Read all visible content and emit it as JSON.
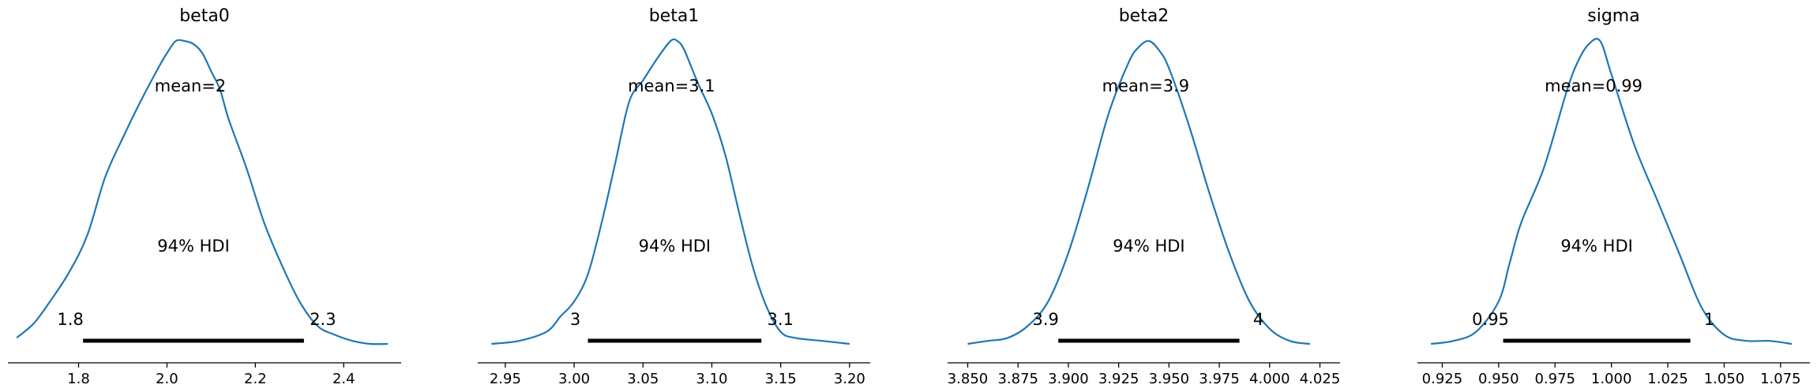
{
  "chart_data": [
    {
      "type": "line",
      "title": "beta0",
      "xlim": [
        1.64,
        2.53
      ],
      "xticks": [
        1.8,
        2.0,
        2.2,
        2.4
      ],
      "xtick_labels": [
        "1.8",
        "2.0",
        "2.2",
        "2.4"
      ],
      "density_x": [
        1.66,
        1.7,
        1.74,
        1.78,
        1.82,
        1.86,
        1.9,
        1.94,
        1.98,
        2.0,
        2.02,
        2.04,
        2.06,
        2.08,
        2.1,
        2.12,
        2.14,
        2.18,
        2.22,
        2.26,
        2.3,
        2.34,
        2.38,
        2.42,
        2.46,
        2.5
      ],
      "density_y": [
        0.02,
        0.07,
        0.15,
        0.24,
        0.36,
        0.55,
        0.68,
        0.8,
        0.91,
        0.96,
        1.0,
        1.0,
        0.99,
        0.96,
        0.9,
        0.84,
        0.74,
        0.58,
        0.4,
        0.26,
        0.14,
        0.06,
        0.03,
        0.01,
        0.0,
        0.0
      ],
      "mean_label": "mean=2",
      "hdi_label": "94% HDI",
      "hdi": [
        1.81,
        2.31
      ],
      "hdi_lower_label": "1.8",
      "hdi_upper_label": "2.3"
    },
    {
      "type": "line",
      "title": "beta1",
      "xlim": [
        2.93,
        3.215
      ],
      "xticks": [
        2.95,
        3.0,
        3.05,
        3.1,
        3.15,
        3.2
      ],
      "xtick_labels": [
        "2.95",
        "3.00",
        "3.05",
        "3.10",
        "3.15",
        "3.20"
      ],
      "density_x": [
        2.94,
        2.96,
        2.98,
        2.99,
        3.0,
        3.01,
        3.02,
        3.03,
        3.04,
        3.05,
        3.06,
        3.07,
        3.075,
        3.08,
        3.09,
        3.1,
        3.11,
        3.12,
        3.13,
        3.14,
        3.15,
        3.16,
        3.18,
        3.2
      ],
      "density_y": [
        0.0,
        0.01,
        0.04,
        0.09,
        0.14,
        0.23,
        0.4,
        0.6,
        0.8,
        0.87,
        0.94,
        1.0,
        1.0,
        0.97,
        0.86,
        0.76,
        0.62,
        0.43,
        0.25,
        0.12,
        0.04,
        0.02,
        0.01,
        0.0
      ],
      "mean_label": "mean=3.1",
      "hdi_label": "94% HDI",
      "hdi": [
        3.01,
        3.136
      ],
      "hdi_lower_label": "3",
      "hdi_upper_label": "3.1"
    },
    {
      "type": "line",
      "title": "beta2",
      "xlim": [
        3.84,
        4.035
      ],
      "xticks": [
        3.85,
        3.875,
        3.9,
        3.925,
        3.95,
        3.975,
        4.0,
        4.025
      ],
      "xtick_labels": [
        "3.850",
        "3.875",
        "3.900",
        "3.925",
        "3.950",
        "3.975",
        "4.000",
        "4.025"
      ],
      "density_x": [
        3.85,
        3.86,
        3.87,
        3.88,
        3.89,
        3.9,
        3.91,
        3.92,
        3.93,
        3.935,
        3.94,
        3.945,
        3.95,
        3.96,
        3.97,
        3.98,
        3.99,
        4.0,
        4.01,
        4.02
      ],
      "density_y": [
        0.0,
        0.01,
        0.02,
        0.06,
        0.14,
        0.3,
        0.52,
        0.76,
        0.93,
        0.98,
        1.0,
        0.97,
        0.91,
        0.72,
        0.5,
        0.3,
        0.14,
        0.05,
        0.01,
        0.0
      ],
      "mean_label": "mean=3.9",
      "hdi_label": "94% HDI",
      "hdi": [
        3.895,
        3.985
      ],
      "hdi_lower_label": "3.9",
      "hdi_upper_label": "4"
    },
    {
      "type": "line",
      "title": "sigma",
      "xlim": [
        0.914,
        1.088
      ],
      "xticks": [
        0.925,
        0.95,
        0.975,
        1.0,
        1.025,
        1.05,
        1.075
      ],
      "xtick_labels": [
        "0.925",
        "0.950",
        "0.975",
        "1.000",
        "1.025",
        "1.050",
        "1.075"
      ],
      "density_x": [
        0.92,
        0.93,
        0.94,
        0.95,
        0.955,
        0.96,
        0.97,
        0.98,
        0.985,
        0.99,
        0.995,
        1.0,
        1.01,
        1.02,
        1.03,
        1.04,
        1.05,
        1.06,
        1.07,
        1.08
      ],
      "density_y": [
        0.0,
        0.01,
        0.04,
        0.14,
        0.27,
        0.4,
        0.58,
        0.83,
        0.93,
        0.99,
        1.0,
        0.89,
        0.66,
        0.48,
        0.3,
        0.12,
        0.03,
        0.01,
        0.01,
        0.0
      ],
      "mean_label": "mean=0.99",
      "hdi_label": "94% HDI",
      "hdi": [
        0.952,
        1.035
      ],
      "hdi_lower_label": "0.95",
      "hdi_upper_label": "1"
    }
  ]
}
